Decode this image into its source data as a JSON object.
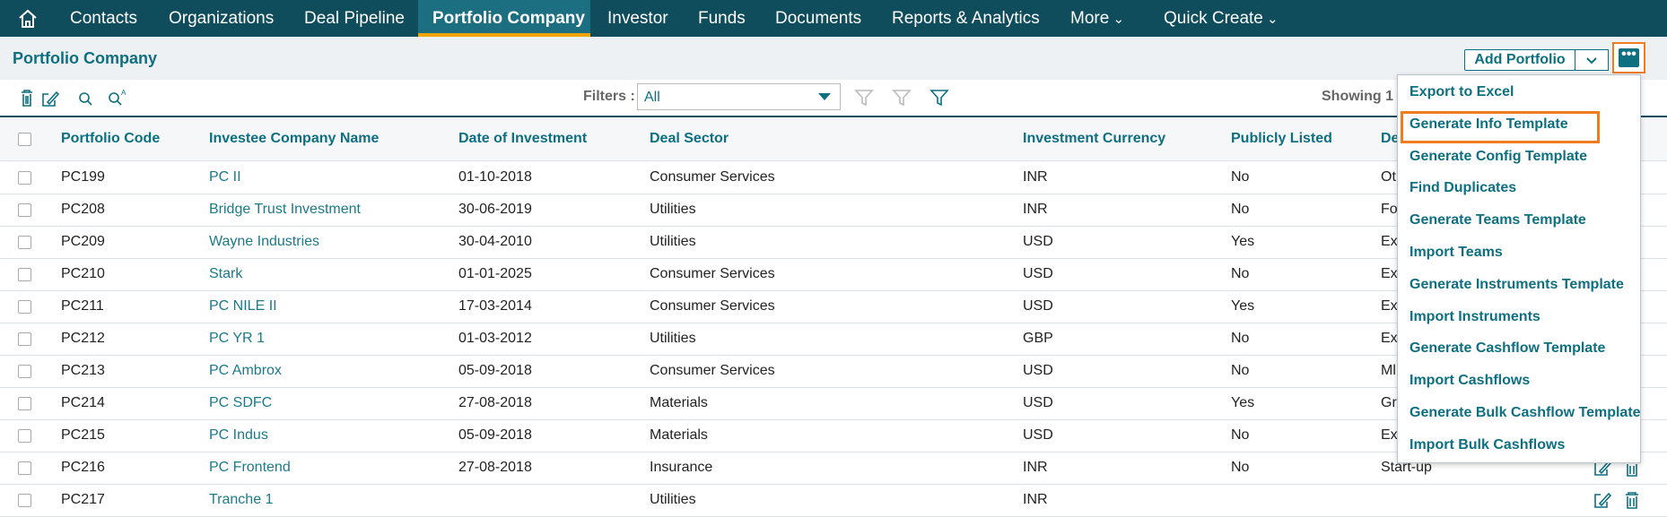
{
  "nav": {
    "items": [
      "Contacts",
      "Organizations",
      "Deal Pipeline",
      "Portfolio Company",
      "Investor",
      "Funds",
      "Documents",
      "Reports & Analytics",
      "More",
      "Quick Create"
    ]
  },
  "page": {
    "title": "Portfolio Company",
    "add_button": "Add Portfolio"
  },
  "toolbar": {
    "filters_label": "Filters :",
    "filter_value": "All",
    "showing": "Showing 1 -"
  },
  "table": {
    "headers": [
      "Portfolio Code",
      "Investee Company Name",
      "Date of Investment",
      "Deal Sector",
      "Investment Currency",
      "Publicly Listed",
      "De"
    ],
    "rows": [
      [
        "PC199",
        "PC II",
        "01-10-2018",
        "Consumer Services",
        "INR",
        "No",
        "Ot"
      ],
      [
        "PC208",
        "Bridge Trust Investment",
        "30-06-2019",
        "Utilities",
        "INR",
        "No",
        "Fo"
      ],
      [
        "PC209",
        "Wayne Industries",
        "30-04-2010",
        "Utilities",
        "USD",
        "Yes",
        "Ex"
      ],
      [
        "PC210",
        "Stark",
        "01-01-2025",
        "Consumer Services",
        "USD",
        "No",
        "Ex"
      ],
      [
        "PC211",
        "PC NILE II",
        "17-03-2014",
        "Consumer Services",
        "USD",
        "Yes",
        "Ex"
      ],
      [
        "PC212",
        "PC YR 1",
        "01-03-2012",
        "Utilities",
        "GBP",
        "No",
        "Ex"
      ],
      [
        "PC213",
        "PC Ambrox",
        "05-09-2018",
        "Consumer Services",
        "USD",
        "No",
        "Ml"
      ],
      [
        "PC214",
        "PC SDFC",
        "27-08-2018",
        "Materials",
        "USD",
        "Yes",
        "Gr"
      ],
      [
        "PC215",
        "PC Indus",
        "05-09-2018",
        "Materials",
        "USD",
        "No",
        "Ex"
      ],
      [
        "PC216",
        "PC Frontend",
        "27-08-2018",
        "Insurance",
        "INR",
        "No",
        "Start-up"
      ],
      [
        "PC217",
        "Tranche 1",
        null,
        "Utilities",
        "INR",
        null,
        null
      ]
    ]
  },
  "menu": {
    "items": [
      "Export to Excel",
      "Generate Info Template",
      "Generate Config Template",
      "Find Duplicates",
      "Generate Teams Template",
      "Import Teams",
      "Generate Instruments Template",
      "Import Instruments",
      "Generate Cashflow Template",
      "Import Cashflows",
      "Generate Bulk Cashflow Template",
      "Import Bulk Cashflows"
    ]
  }
}
